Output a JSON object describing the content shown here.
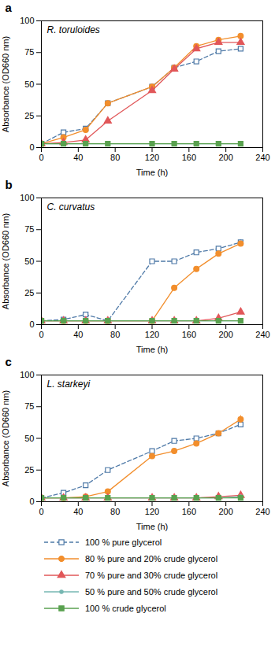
{
  "chart_data": [
    {
      "type": "line",
      "title": "R. toruloides",
      "annotations": [
        "a"
      ],
      "xlabel": "Time (h)",
      "ylabel": "Absorbance (OD660 nm)",
      "xlim": [
        0,
        240
      ],
      "ylim": [
        0,
        100
      ],
      "xticks": [
        0,
        40,
        80,
        120,
        160,
        200,
        240
      ],
      "yticks": [
        0,
        25,
        50,
        75,
        100
      ],
      "grid": false,
      "x": [
        0,
        24,
        48,
        72,
        120,
        144,
        168,
        192,
        216
      ],
      "series": [
        {
          "name": "100 % pure glycerol",
          "line_style": "dashed",
          "marker": "open square",
          "values": [
            3,
            12,
            15,
            35,
            48,
            63,
            68,
            76,
            78
          ],
          "errors": [
            0.3,
            0.8,
            1.0,
            1.5,
            1.5,
            1.5,
            1.5,
            1.5,
            1.5
          ]
        },
        {
          "name": "80 % pure and 20% crude glycerol",
          "line_style": "solid",
          "marker": "circle",
          "values": [
            3,
            8,
            14,
            35,
            48,
            63,
            80,
            85,
            88
          ],
          "errors": [
            0.3,
            0.8,
            1.0,
            1.5,
            1.5,
            1.5,
            1.5,
            1.5,
            2.0
          ]
        },
        {
          "name": "70 % pure and 30% crude glycerol",
          "line_style": "solid",
          "marker": "triangle",
          "values": [
            3,
            4,
            6,
            21,
            45,
            62,
            78,
            83,
            83
          ],
          "errors": [
            0.3,
            0.3,
            0.5,
            1.5,
            1.5,
            1.5,
            1.5,
            1.5,
            1.5
          ]
        },
        {
          "name": "50 % pure and 50% crude glycerol",
          "line_style": "solid",
          "marker": "small circle",
          "values": [
            3,
            3,
            3,
            3,
            3,
            3,
            3,
            3,
            3
          ],
          "errors": [
            0.2,
            0.2,
            0.2,
            0.2,
            0.2,
            0.2,
            0.2,
            0.2,
            0.2
          ]
        },
        {
          "name": "100 % crude glycerol",
          "line_style": "solid",
          "marker": "square",
          "values": [
            3,
            3,
            3,
            3,
            3,
            3,
            3,
            3,
            3
          ],
          "errors": [
            0.2,
            0.2,
            0.2,
            0.2,
            0.2,
            0.2,
            0.2,
            0.2,
            0.2
          ]
        }
      ]
    },
    {
      "type": "line",
      "title": "C. curvatus",
      "annotations": [
        "b"
      ],
      "xlabel": "Time (h)",
      "ylabel": "Absorbance (OD660 nm)",
      "xlim": [
        0,
        240
      ],
      "ylim": [
        0,
        100
      ],
      "xticks": [
        0,
        40,
        80,
        120,
        160,
        200,
        240
      ],
      "yticks": [
        0,
        25,
        50,
        75,
        100
      ],
      "grid": false,
      "x": [
        0,
        24,
        48,
        72,
        120,
        144,
        168,
        192,
        216
      ],
      "series": [
        {
          "name": "100 % pure glycerol",
          "line_style": "dashed",
          "marker": "open square",
          "values": [
            3,
            4,
            8,
            3,
            50,
            50,
            57,
            60,
            65
          ],
          "errors": [
            0.3,
            0.3,
            0.5,
            0.3,
            1.5,
            1.5,
            1.5,
            1.5,
            2.0
          ]
        },
        {
          "name": "80 % pure and 20% crude glycerol",
          "line_style": "solid",
          "marker": "circle",
          "values": [
            3,
            3,
            3,
            3,
            3,
            29,
            44,
            56,
            64
          ],
          "errors": [
            0.3,
            0.3,
            0.3,
            0.3,
            0.3,
            1.5,
            1.5,
            1.5,
            1.5
          ]
        },
        {
          "name": "70 % pure and 30% crude glycerol",
          "line_style": "solid",
          "marker": "triangle",
          "values": [
            3,
            3,
            3,
            3,
            3,
            3,
            3,
            5,
            10
          ],
          "errors": [
            0.2,
            0.2,
            0.2,
            0.2,
            0.2,
            0.2,
            0.2,
            0.3,
            1.0
          ]
        },
        {
          "name": "50 % pure and 50% crude glycerol",
          "line_style": "solid",
          "marker": "small circle",
          "values": [
            3,
            3,
            3,
            3,
            3,
            3,
            3,
            3,
            3
          ],
          "errors": [
            0.2,
            0.2,
            0.2,
            0.2,
            0.2,
            0.2,
            0.2,
            0.2,
            0.2
          ]
        },
        {
          "name": "100 % crude glycerol",
          "line_style": "solid",
          "marker": "square",
          "values": [
            3,
            3,
            3,
            3,
            3,
            3,
            3,
            3,
            3
          ],
          "errors": [
            0.2,
            0.2,
            0.2,
            0.2,
            0.2,
            0.2,
            0.2,
            0.2,
            0.2
          ]
        }
      ]
    },
    {
      "type": "line",
      "title": "L. starkeyi",
      "annotations": [
        "c"
      ],
      "xlabel": "Time (h)",
      "ylabel": "Absorbance (OD660 nm)",
      "xlim": [
        0,
        240
      ],
      "ylim": [
        0,
        100
      ],
      "xticks": [
        0,
        40,
        80,
        120,
        160,
        200,
        240
      ],
      "yticks": [
        0,
        25,
        50,
        75,
        100
      ],
      "grid": false,
      "legend": "bottom",
      "x": [
        0,
        24,
        48,
        72,
        120,
        144,
        168,
        192,
        216
      ],
      "series": [
        {
          "name": "100 % pure glycerol",
          "line_style": "dashed",
          "marker": "open square",
          "values": [
            3,
            7,
            13,
            25,
            40,
            48,
            50,
            54,
            61
          ],
          "errors": [
            0.3,
            0.5,
            0.8,
            1.5,
            1.5,
            1.5,
            1.5,
            1.5,
            1.5
          ]
        },
        {
          "name": "80 % pure and 20% crude glycerol",
          "line_style": "solid",
          "marker": "circle",
          "values": [
            3,
            3,
            4,
            8,
            36,
            40,
            46,
            54,
            65
          ],
          "errors": [
            0.3,
            0.3,
            0.3,
            0.8,
            1.5,
            1.5,
            1.5,
            1.5,
            3.0
          ]
        },
        {
          "name": "70 % pure and 30% crude glycerol",
          "line_style": "solid",
          "marker": "triangle",
          "values": [
            3,
            3,
            3,
            3,
            3,
            3,
            3,
            4,
            5
          ],
          "errors": [
            0.2,
            0.2,
            0.2,
            0.2,
            0.2,
            0.2,
            0.2,
            0.3,
            0.5
          ]
        },
        {
          "name": "50 % pure and 50% crude glycerol",
          "line_style": "solid",
          "marker": "small circle",
          "values": [
            3,
            3,
            3,
            3,
            3,
            3,
            3,
            3,
            4
          ],
          "errors": [
            0.2,
            0.2,
            0.2,
            0.2,
            0.2,
            0.2,
            0.2,
            0.2,
            0.3
          ]
        },
        {
          "name": "100 % crude glycerol",
          "line_style": "solid",
          "marker": "square",
          "values": [
            3,
            3,
            3,
            3,
            3,
            3,
            3,
            3,
            3
          ],
          "errors": [
            0.2,
            0.2,
            0.2,
            0.2,
            0.2,
            0.2,
            0.2,
            0.2,
            0.2
          ]
        }
      ]
    }
  ]
}
